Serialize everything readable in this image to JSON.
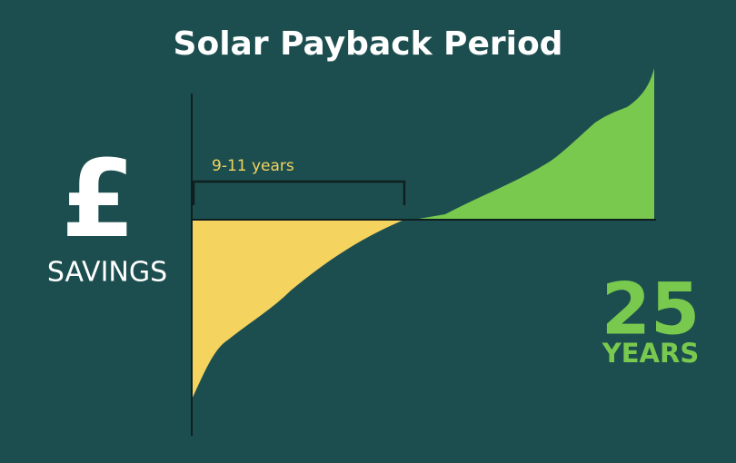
{
  "title": "Solar Payback Period",
  "bracket_label": "9-11 years",
  "axis_symbol": "£",
  "axis_label": "SAVINGS",
  "duration": {
    "number": 25,
    "unit": "YEARS"
  }
}
